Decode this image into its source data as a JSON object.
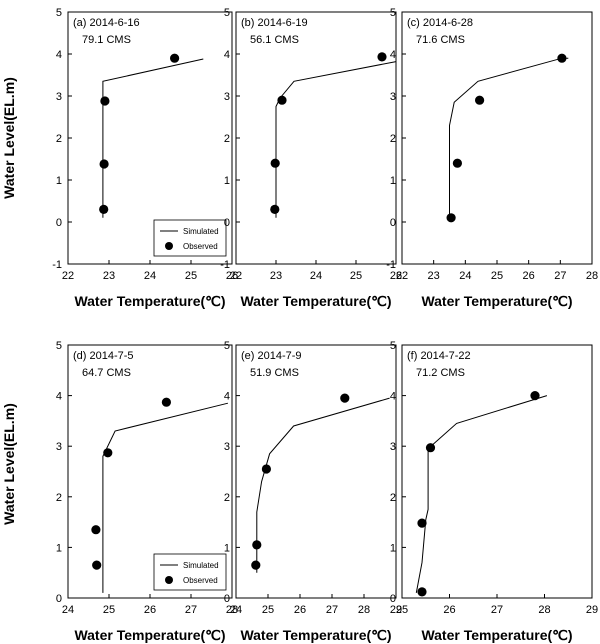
{
  "figure": {
    "ylabel": "Water Level(EL.m)",
    "xlabel": "Water Temperature(℃)",
    "legend": {
      "simulated": "Simulated",
      "observed": "Observed"
    }
  },
  "chart_data": [
    {
      "type": "line",
      "title": "(a) 2014-6-16",
      "subtitle": "79.1 CMS",
      "xlim": [
        22,
        26
      ],
      "ylim": [
        -1,
        5
      ],
      "xticks": [
        22,
        23,
        24,
        25,
        26
      ],
      "yticks": [
        -1,
        0,
        1,
        2,
        3,
        4,
        5
      ],
      "legend": true,
      "series": [
        {
          "name": "Simulated",
          "kind": "line",
          "points": [
            [
              22.85,
              0.1
            ],
            [
              22.85,
              3.35
            ],
            [
              25.3,
              3.88
            ]
          ]
        },
        {
          "name": "Observed",
          "kind": "scatter",
          "points": [
            [
              24.6,
              3.9
            ],
            [
              22.9,
              2.88
            ],
            [
              22.88,
              1.38
            ],
            [
              22.87,
              0.3
            ]
          ]
        }
      ]
    },
    {
      "type": "line",
      "title": "(b) 2014-6-19",
      "subtitle": "56.1 CMS",
      "xlim": [
        22,
        26
      ],
      "ylim": [
        -1,
        5
      ],
      "xticks": [
        22,
        23,
        24,
        25,
        26
      ],
      "yticks": [
        -1,
        0,
        1,
        2,
        3,
        4,
        5
      ],
      "legend": false,
      "series": [
        {
          "name": "Simulated",
          "kind": "line",
          "points": [
            [
              23.0,
              0.1
            ],
            [
              23.0,
              2.75
            ],
            [
              23.1,
              2.95
            ],
            [
              23.45,
              3.35
            ],
            [
              26.0,
              3.82
            ]
          ]
        },
        {
          "name": "Observed",
          "kind": "scatter",
          "points": [
            [
              25.65,
              3.93
            ],
            [
              23.15,
              2.9
            ],
            [
              22.98,
              1.4
            ],
            [
              22.97,
              0.3
            ]
          ]
        }
      ]
    },
    {
      "type": "line",
      "title": "(c) 2014-6-28",
      "subtitle": "71.6 CMS",
      "xlim": [
        22,
        28
      ],
      "ylim": [
        -1,
        5
      ],
      "xticks": [
        22,
        23,
        24,
        25,
        26,
        27,
        28
      ],
      "yticks": [
        -1,
        0,
        1,
        2,
        3,
        4,
        5
      ],
      "legend": false,
      "series": [
        {
          "name": "Simulated",
          "kind": "line",
          "points": [
            [
              23.5,
              0.1
            ],
            [
              23.5,
              2.3
            ],
            [
              23.65,
              2.85
            ],
            [
              24.4,
              3.35
            ],
            [
              27.05,
              3.9
            ],
            [
              27.25,
              3.9
            ]
          ]
        },
        {
          "name": "Observed",
          "kind": "scatter",
          "points": [
            [
              27.05,
              3.9
            ],
            [
              24.45,
              2.9
            ],
            [
              23.75,
              1.4
            ],
            [
              23.55,
              0.1
            ]
          ]
        }
      ]
    },
    {
      "type": "line",
      "title": "(d) 2014-7-5",
      "subtitle": "64.7 CMS",
      "xlim": [
        24,
        28
      ],
      "ylim": [
        0,
        5
      ],
      "xticks": [
        24,
        25,
        26,
        27,
        28
      ],
      "yticks": [
        0,
        1,
        2,
        3,
        4,
        5
      ],
      "legend": true,
      "series": [
        {
          "name": "Simulated",
          "kind": "line",
          "points": [
            [
              24.85,
              0.1
            ],
            [
              24.85,
              2.8
            ],
            [
              25.15,
              3.3
            ],
            [
              27.9,
              3.85
            ]
          ]
        },
        {
          "name": "Observed",
          "kind": "scatter",
          "points": [
            [
              26.4,
              3.87
            ],
            [
              24.97,
              2.87
            ],
            [
              24.68,
              1.35
            ],
            [
              24.7,
              0.65
            ]
          ]
        }
      ]
    },
    {
      "type": "line",
      "title": "(e) 2014-7-9",
      "subtitle": "51.9 CMS",
      "xlim": [
        24,
        29
      ],
      "ylim": [
        0,
        5
      ],
      "xticks": [
        24,
        25,
        26,
        27,
        28,
        29
      ],
      "yticks": [
        0,
        1,
        2,
        3,
        4,
        5
      ],
      "legend": false,
      "series": [
        {
          "name": "Simulated",
          "kind": "line",
          "points": [
            [
              24.65,
              0.5
            ],
            [
              24.65,
              1.7
            ],
            [
              24.8,
              2.3
            ],
            [
              25.05,
              2.85
            ],
            [
              25.8,
              3.4
            ],
            [
              28.8,
              3.95
            ]
          ]
        },
        {
          "name": "Observed",
          "kind": "scatter",
          "points": [
            [
              27.4,
              3.95
            ],
            [
              24.95,
              2.55
            ],
            [
              24.65,
              1.05
            ],
            [
              24.62,
              0.65
            ]
          ]
        }
      ]
    },
    {
      "type": "line",
      "title": "(f) 2014-7-22",
      "subtitle": "71.2 CMS",
      "xlim": [
        25,
        29
      ],
      "ylim": [
        0,
        5
      ],
      "xticks": [
        25,
        26,
        27,
        28,
        29
      ],
      "yticks": [
        0,
        1,
        2,
        3,
        4,
        5
      ],
      "legend": false,
      "series": [
        {
          "name": "Simulated",
          "kind": "line",
          "points": [
            [
              25.3,
              0.1
            ],
            [
              25.42,
              0.7
            ],
            [
              25.5,
              1.55
            ],
            [
              25.55,
              1.75
            ],
            [
              25.55,
              2.95
            ],
            [
              26.15,
              3.45
            ],
            [
              28.05,
              4.0
            ]
          ]
        },
        {
          "name": "Observed",
          "kind": "scatter",
          "points": [
            [
              27.8,
              4.0
            ],
            [
              25.6,
              2.97
            ],
            [
              25.42,
              1.48
            ],
            [
              25.42,
              0.12
            ]
          ]
        }
      ]
    }
  ]
}
